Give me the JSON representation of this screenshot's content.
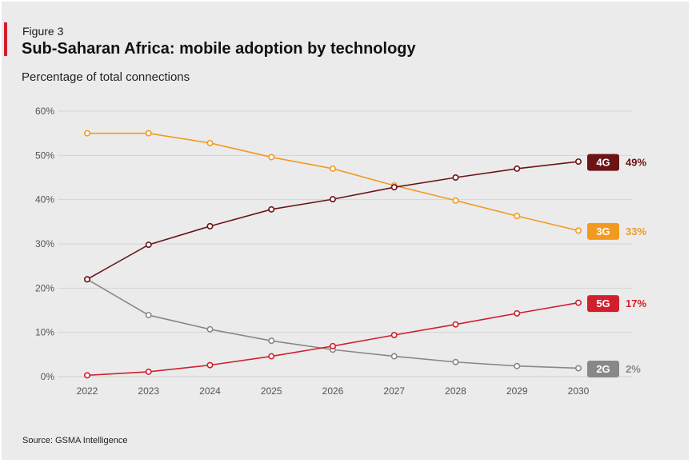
{
  "figure_label": "Figure 3",
  "title": "Sub-Saharan Africa: mobile adoption by technology",
  "subtitle": "Percentage of total connections",
  "source": "Source: GSMA Intelligence",
  "colors": {
    "accent": "#d0202e",
    "background": "#ebebeb",
    "grid": "#d4d4d4"
  },
  "chart_data": {
    "type": "line",
    "title": "Sub-Saharan Africa: mobile adoption by technology",
    "ylabel": "Percentage of total connections",
    "x": [
      "2022",
      "2023",
      "2024",
      "2025",
      "2026",
      "2027",
      "2028",
      "2029",
      "2030"
    ],
    "ylim": [
      0,
      60
    ],
    "yticks": [
      "0%",
      "10%",
      "20%",
      "30%",
      "40%",
      "50%",
      "60%"
    ],
    "grid": true,
    "series": [
      {
        "name": "4G",
        "color": "#6b1416",
        "end_label": "49%",
        "values": [
          22,
          29.8,
          34,
          37.8,
          40.1,
          42.8,
          45,
          47,
          48.6
        ]
      },
      {
        "name": "3G",
        "color": "#f29a1f",
        "end_label": "33%",
        "values": [
          55,
          55,
          52.8,
          49.6,
          47,
          43.2,
          39.8,
          36.3,
          33
        ]
      },
      {
        "name": "5G",
        "color": "#d0202e",
        "end_label": "17%",
        "values": [
          0.3,
          1.1,
          2.6,
          4.6,
          6.9,
          9.4,
          11.8,
          14.3,
          16.7
        ]
      },
      {
        "name": "2G",
        "color": "#888888",
        "end_label": "2%",
        "values": [
          22,
          13.9,
          10.7,
          8.1,
          6.1,
          4.6,
          3.3,
          2.4,
          1.9
        ]
      }
    ]
  }
}
